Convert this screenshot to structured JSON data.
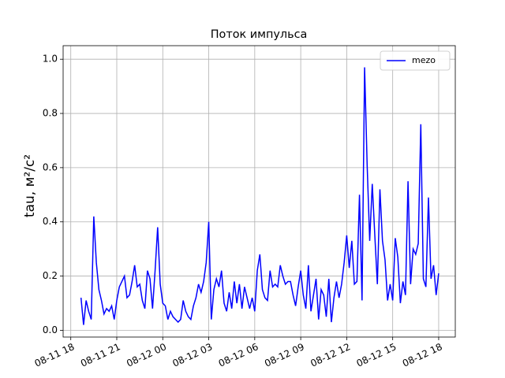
{
  "chart_data": {
    "type": "line",
    "title": "Поток импульса",
    "ylabel": "tau, м²/с²",
    "grid": true,
    "legend": "upper right",
    "xlim": [
      "08-11 17:30",
      "08-12 19:05"
    ],
    "xticks": [
      "08-11 18",
      "08-11 21",
      "08-12 00",
      "08-12 03",
      "08-12 06",
      "08-12 09",
      "08-12 12",
      "08-12 15",
      "08-12 18"
    ],
    "ylim": [
      -0.025,
      1.05
    ],
    "yticks": [
      {
        "value": 0,
        "label": "0.0"
      },
      {
        "value": 0.2,
        "label": "0.2"
      },
      {
        "value": 0.4,
        "label": "0.4"
      },
      {
        "value": 0.6,
        "label": "0.6"
      },
      {
        "value": 0.8,
        "label": "0.8"
      },
      {
        "value": 1,
        "label": "1.0"
      }
    ],
    "x": [
      "08-11 18:40",
      "08-11 18:50",
      "08-11 19:00",
      "08-11 19:10",
      "08-11 19:20",
      "08-11 19:30",
      "08-11 19:40",
      "08-11 19:50",
      "08-11 20:00",
      "08-11 20:10",
      "08-11 20:20",
      "08-11 20:30",
      "08-11 20:40",
      "08-11 20:50",
      "08-11 21:00",
      "08-11 21:10",
      "08-11 21:20",
      "08-11 21:30",
      "08-11 21:40",
      "08-11 21:50",
      "08-11 22:00",
      "08-11 22:10",
      "08-11 22:20",
      "08-11 22:30",
      "08-11 22:40",
      "08-11 22:50",
      "08-11 23:00",
      "08-11 23:10",
      "08-11 23:20",
      "08-11 23:30",
      "08-11 23:40",
      "08-11 23:50",
      "08-12 00:00",
      "08-12 00:10",
      "08-12 00:20",
      "08-12 00:30",
      "08-12 00:40",
      "08-12 00:50",
      "08-12 01:00",
      "08-12 01:10",
      "08-12 01:20",
      "08-12 01:30",
      "08-12 01:40",
      "08-12 01:50",
      "08-12 02:00",
      "08-12 02:10",
      "08-12 02:20",
      "08-12 02:30",
      "08-12 02:40",
      "08-12 02:50",
      "08-12 03:00",
      "08-12 03:10",
      "08-12 03:20",
      "08-12 03:30",
      "08-12 03:40",
      "08-12 03:50",
      "08-12 04:00",
      "08-12 04:10",
      "08-12 04:20",
      "08-12 04:30",
      "08-12 04:40",
      "08-12 04:50",
      "08-12 05:00",
      "08-12 05:10",
      "08-12 05:20",
      "08-12 05:30",
      "08-12 05:40",
      "08-12 05:50",
      "08-12 06:00",
      "08-12 06:10",
      "08-12 06:20",
      "08-12 06:30",
      "08-12 06:40",
      "08-12 06:50",
      "08-12 07:00",
      "08-12 07:10",
      "08-12 07:20",
      "08-12 07:30",
      "08-12 07:40",
      "08-12 07:50",
      "08-12 08:00",
      "08-12 08:10",
      "08-12 08:20",
      "08-12 08:30",
      "08-12 08:40",
      "08-12 08:50",
      "08-12 09:00",
      "08-12 09:10",
      "08-12 09:20",
      "08-12 09:30",
      "08-12 09:40",
      "08-12 09:50",
      "08-12 10:00",
      "08-12 10:10",
      "08-12 10:20",
      "08-12 10:30",
      "08-12 10:40",
      "08-12 10:50",
      "08-12 11:00",
      "08-12 11:10",
      "08-12 11:20",
      "08-12 11:30",
      "08-12 11:40",
      "08-12 11:50",
      "08-12 12:00",
      "08-12 12:10",
      "08-12 12:20",
      "08-12 12:30",
      "08-12 12:40",
      "08-12 12:50",
      "08-12 13:00",
      "08-12 13:10",
      "08-12 13:20",
      "08-12 13:30",
      "08-12 13:40",
      "08-12 13:50",
      "08-12 14:00",
      "08-12 14:10",
      "08-12 14:20",
      "08-12 14:30",
      "08-12 14:40",
      "08-12 14:50",
      "08-12 15:00",
      "08-12 15:10",
      "08-12 15:20",
      "08-12 15:30",
      "08-12 15:40",
      "08-12 15:50",
      "08-12 16:00",
      "08-12 16:10",
      "08-12 16:20",
      "08-12 16:30",
      "08-12 16:40",
      "08-12 16:50",
      "08-12 17:00",
      "08-12 17:10",
      "08-12 17:20",
      "08-12 17:30",
      "08-12 17:40",
      "08-12 17:50",
      "08-12 18:00"
    ],
    "series": [
      {
        "name": "mezo",
        "color": "#0000ff",
        "values": [
          0.12,
          0.02,
          0.11,
          0.07,
          0.04,
          0.42,
          0.25,
          0.15,
          0.11,
          0.06,
          0.08,
          0.07,
          0.09,
          0.04,
          0.11,
          0.16,
          0.18,
          0.2,
          0.12,
          0.13,
          0.18,
          0.24,
          0.16,
          0.17,
          0.11,
          0.08,
          0.22,
          0.19,
          0.08,
          0.22,
          0.38,
          0.17,
          0.1,
          0.09,
          0.04,
          0.07,
          0.05,
          0.04,
          0.03,
          0.04,
          0.11,
          0.07,
          0.05,
          0.04,
          0.09,
          0.12,
          0.17,
          0.14,
          0.18,
          0.25,
          0.4,
          0.04,
          0.15,
          0.19,
          0.16,
          0.22,
          0.1,
          0.07,
          0.14,
          0.08,
          0.18,
          0.1,
          0.17,
          0.08,
          0.16,
          0.12,
          0.08,
          0.12,
          0.07,
          0.22,
          0.28,
          0.15,
          0.12,
          0.11,
          0.22,
          0.16,
          0.17,
          0.16,
          0.24,
          0.2,
          0.17,
          0.18,
          0.18,
          0.13,
          0.09,
          0.16,
          0.22,
          0.13,
          0.08,
          0.24,
          0.07,
          0.13,
          0.19,
          0.04,
          0.15,
          0.13,
          0.05,
          0.19,
          0.03,
          0.12,
          0.18,
          0.12,
          0.17,
          0.25,
          0.35,
          0.23,
          0.33,
          0.17,
          0.18,
          0.5,
          0.11,
          0.97,
          0.61,
          0.33,
          0.54,
          0.35,
          0.17,
          0.52,
          0.33,
          0.26,
          0.11,
          0.17,
          0.11,
          0.34,
          0.27,
          0.1,
          0.18,
          0.13,
          0.55,
          0.17,
          0.3,
          0.28,
          0.32,
          0.76,
          0.19,
          0.16,
          0.49,
          0.19,
          0.24,
          0.13,
          0.21
        ]
      }
    ]
  }
}
